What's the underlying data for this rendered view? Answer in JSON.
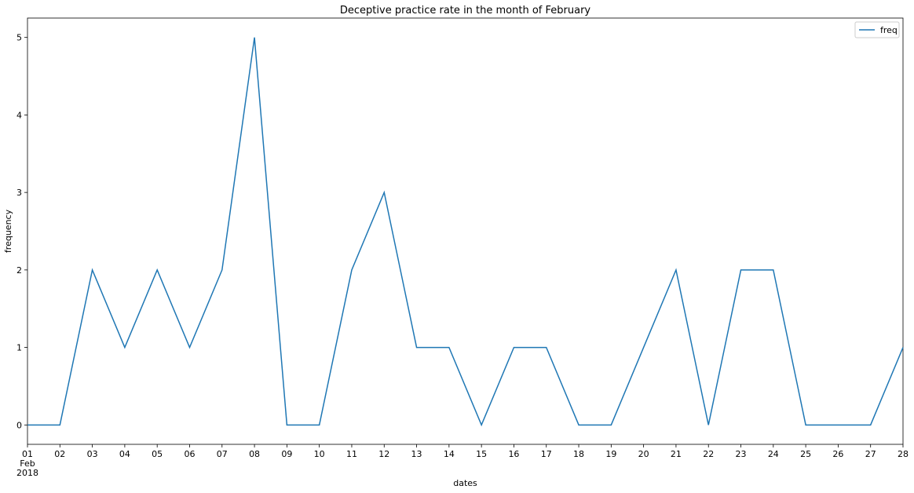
{
  "chart_data": {
    "type": "line",
    "title": "Deceptive practice rate in the month of February",
    "xlabel": "dates",
    "ylabel": "frequency",
    "x": [
      "01",
      "02",
      "03",
      "04",
      "05",
      "06",
      "07",
      "08",
      "09",
      "10",
      "11",
      "12",
      "13",
      "14",
      "15",
      "16",
      "17",
      "18",
      "19",
      "20",
      "21",
      "22",
      "23",
      "24",
      "25",
      "26",
      "27",
      "28"
    ],
    "x_sublabel": [
      "Feb",
      "2018"
    ],
    "yticks": [
      0,
      1,
      2,
      3,
      4,
      5
    ],
    "ylim": [
      -0.25,
      5.25
    ],
    "series": [
      {
        "name": "freq",
        "color": "#1f77b4",
        "values": [
          0,
          0,
          2,
          1,
          2,
          1,
          2,
          5,
          0,
          0,
          2,
          3,
          1,
          1,
          0,
          1,
          1,
          0,
          0,
          1,
          2,
          0,
          2,
          2,
          0,
          0,
          0,
          1
        ]
      }
    ],
    "legend": "top-right",
    "grid": false
  }
}
